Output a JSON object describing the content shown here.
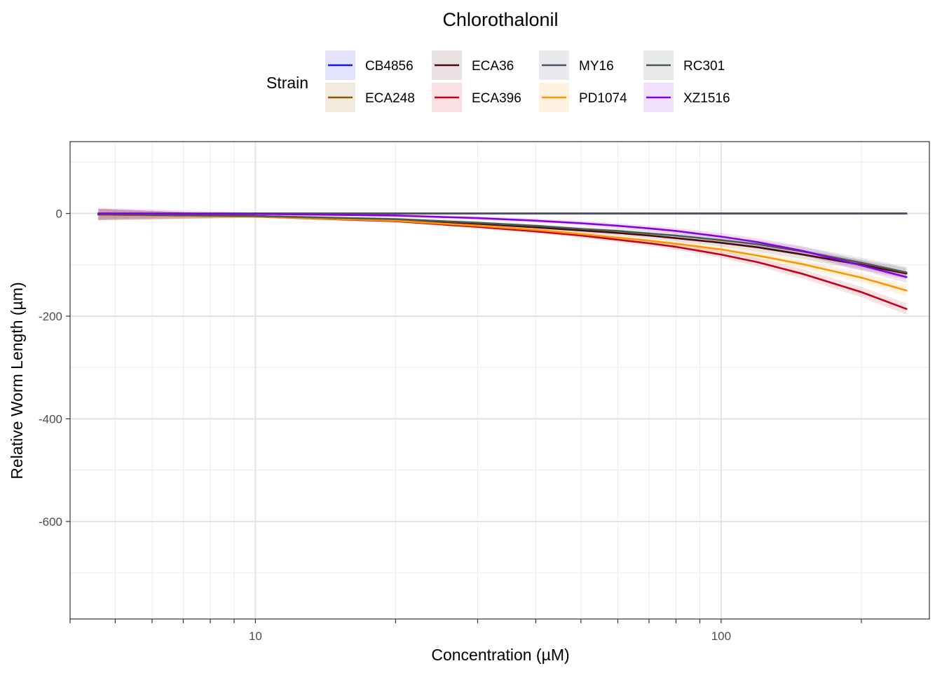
{
  "chart_data": {
    "type": "line",
    "title": "Chlorothalonil",
    "xlabel": "Concentration (µM)",
    "ylabel": "Relative Worm Length (µm)",
    "x_scale": "log10",
    "xlim": [
      4.0,
      280
    ],
    "ylim": [
      -790,
      140
    ],
    "x_major_ticks": [
      {
        "value": 10,
        "label": "10"
      },
      {
        "value": 100,
        "label": "100"
      }
    ],
    "y_major_ticks": [
      {
        "value": 0,
        "label": "0"
      },
      {
        "value": -200,
        "label": "-200"
      },
      {
        "value": -400,
        "label": "-400"
      },
      {
        "value": -600,
        "label": "-600"
      }
    ],
    "y_minor_ticks": [
      100,
      -100,
      -300,
      -500,
      -700
    ],
    "grid": true,
    "legend": {
      "title": "Strain",
      "position": "top"
    },
    "x": [
      4.6,
      10,
      20,
      30,
      40,
      50,
      60,
      70,
      80,
      100,
      120,
      150,
      200,
      250
    ],
    "series": [
      {
        "name": "CB4856",
        "color": "#1A1AE6",
        "values": [
          0,
          0,
          0,
          0,
          0,
          0,
          0,
          0,
          0,
          0,
          0,
          0,
          0,
          0
        ]
      },
      {
        "name": "ECA248",
        "color": "#8B5A00",
        "values": [
          0,
          0,
          0,
          0,
          0,
          0,
          0,
          0,
          0,
          0,
          0,
          0,
          0,
          0
        ]
      },
      {
        "name": "ECA36",
        "color": "#4A0A0F",
        "values": [
          -2,
          -5,
          -12,
          -20,
          -27,
          -33,
          -38,
          -43,
          -48,
          -57,
          -66,
          -80,
          -100,
          -117
        ]
      },
      {
        "name": "ECA396",
        "color": "#C4001C",
        "values": [
          -2,
          -6,
          -15,
          -26,
          -35,
          -43,
          -51,
          -58,
          -65,
          -80,
          -95,
          -118,
          -153,
          -186
        ]
      },
      {
        "name": "MY16",
        "color": "#4D5068",
        "values": [
          0,
          0,
          0,
          0,
          0,
          0,
          0,
          0,
          0,
          0,
          0,
          0,
          0,
          0
        ]
      },
      {
        "name": "PD1074",
        "color": "#FF9500",
        "values": [
          -2,
          -6,
          -14,
          -24,
          -32,
          -40,
          -47,
          -53,
          -59,
          -70,
          -82,
          -99,
          -125,
          -150
        ]
      },
      {
        "name": "RC301",
        "color": "#4A5A4E",
        "values": [
          -2,
          -5,
          -11,
          -18,
          -24,
          -30,
          -34,
          -39,
          -43,
          -52,
          -60,
          -74,
          -96,
          -115
        ]
      },
      {
        "name": "XZ1516",
        "color": "#8B00E0",
        "values": [
          0,
          -1,
          -4,
          -9,
          -14,
          -19,
          -24,
          -29,
          -34,
          -45,
          -56,
          -73,
          -101,
          -124
        ]
      }
    ]
  }
}
